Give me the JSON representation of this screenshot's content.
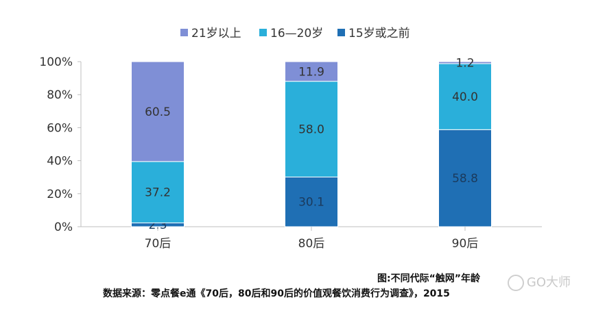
{
  "chart_data": {
    "type": "bar",
    "stacked": true,
    "categories": [
      "70后",
      "80后",
      "90后"
    ],
    "series": [
      {
        "name": "15岁或之前",
        "color": "#1f6fb4",
        "label_color": "#1b3a5c",
        "values": [
          2.3,
          30.1,
          58.8
        ]
      },
      {
        "name": "16—20岁",
        "color": "#2aafda",
        "label_color": "#333333",
        "values": [
          37.2,
          58.0,
          40.0
        ]
      },
      {
        "name": "21岁以上",
        "color": "#7f8fd6",
        "label_color": "#333333",
        "values": [
          60.5,
          11.9,
          1.2
        ]
      }
    ],
    "legend_order": [
      "21岁以上",
      "16—20岁",
      "15岁或之前"
    ],
    "yticks": [
      "0%",
      "20%",
      "40%",
      "60%",
      "80%",
      "100%"
    ],
    "ylim": [
      0,
      100
    ],
    "legend_position": "top-center",
    "grid": false
  },
  "caption": {
    "title": "图:不同代际“触网”年龄",
    "source": "数据来源：零点餐e通《70后，80后和90后的价值观餐饮消费行为调查》，2015"
  },
  "watermark": "GO大师"
}
